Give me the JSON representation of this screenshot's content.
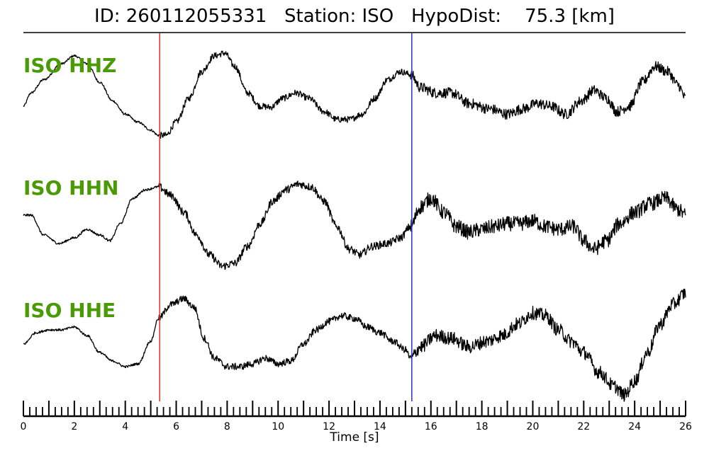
{
  "title": "ID: 260112055331   Station: ISO   HypoDist:    75.3 [km]",
  "chart_data": {
    "type": "line",
    "title": "ID: 260112055331   Station: ISO   HypoDist:    75.3 [km]",
    "xlabel": "Time [s]",
    "ylabel": "",
    "xlim": [
      0,
      26
    ],
    "x_ticks": [
      0,
      2,
      4,
      6,
      8,
      10,
      12,
      14,
      16,
      18,
      20,
      22,
      24,
      26
    ],
    "minor_tick_step": 0.25,
    "grid": false,
    "label_color": "#4a9a06",
    "trace_color": "#000000",
    "markers": [
      {
        "name": "P pick",
        "t": 5.35,
        "color": "#e0312c"
      },
      {
        "name": "S pick",
        "t": 15.25,
        "color": "#2a2fc8"
      }
    ],
    "series": [
      {
        "name": "ISO HHZ",
        "noise_phases": [
          [
            0,
            5.3,
            0.02
          ],
          [
            5.3,
            15.2,
            0.06
          ],
          [
            15.2,
            26,
            0.1
          ]
        ],
        "points": [
          [
            0,
            -0.2
          ],
          [
            0.3,
            0.05
          ],
          [
            0.8,
            0.3
          ],
          [
            1.5,
            0.6
          ],
          [
            2.0,
            0.75
          ],
          [
            2.5,
            0.6
          ],
          [
            3.0,
            0.25
          ],
          [
            3.5,
            -0.1
          ],
          [
            4.0,
            -0.35
          ],
          [
            4.5,
            -0.5
          ],
          [
            5.0,
            -0.65
          ],
          [
            5.3,
            -0.75
          ],
          [
            5.6,
            -0.75
          ],
          [
            6.0,
            -0.5
          ],
          [
            6.5,
            -0.05
          ],
          [
            7.0,
            0.45
          ],
          [
            7.5,
            0.75
          ],
          [
            7.9,
            0.8
          ],
          [
            8.3,
            0.55
          ],
          [
            8.8,
            0.05
          ],
          [
            9.3,
            -0.2
          ],
          [
            9.7,
            -0.22
          ],
          [
            10.2,
            -0.05
          ],
          [
            10.7,
            0.05
          ],
          [
            11.2,
            -0.05
          ],
          [
            11.8,
            -0.3
          ],
          [
            12.3,
            -0.45
          ],
          [
            12.8,
            -0.45
          ],
          [
            13.3,
            -0.35
          ],
          [
            13.8,
            -0.05
          ],
          [
            14.3,
            0.3
          ],
          [
            14.8,
            0.45
          ],
          [
            15.2,
            0.4
          ],
          [
            15.6,
            0.15
          ],
          [
            16.2,
            0.05
          ],
          [
            16.8,
            0.05
          ],
          [
            17.5,
            -0.15
          ],
          [
            18.3,
            -0.25
          ],
          [
            19.0,
            -0.35
          ],
          [
            19.6,
            -0.25
          ],
          [
            20.2,
            -0.15
          ],
          [
            20.7,
            -0.2
          ],
          [
            21.3,
            -0.35
          ],
          [
            21.9,
            -0.1
          ],
          [
            22.4,
            0.1
          ],
          [
            22.9,
            -0.05
          ],
          [
            23.3,
            -0.3
          ],
          [
            23.8,
            -0.2
          ],
          [
            24.3,
            0.25
          ],
          [
            24.8,
            0.55
          ],
          [
            25.3,
            0.45
          ],
          [
            25.7,
            0.2
          ],
          [
            26.0,
            -0.05
          ]
        ]
      },
      {
        "name": "ISO HHN",
        "noise_phases": [
          [
            0,
            5.3,
            0.02
          ],
          [
            5.3,
            15.2,
            0.07
          ],
          [
            15.2,
            26,
            0.13
          ]
        ],
        "points": [
          [
            0,
            0.1
          ],
          [
            0.3,
            0.1
          ],
          [
            0.8,
            -0.25
          ],
          [
            1.4,
            -0.4
          ],
          [
            2.0,
            -0.3
          ],
          [
            2.5,
            -0.15
          ],
          [
            3.0,
            -0.25
          ],
          [
            3.4,
            -0.35
          ],
          [
            3.8,
            -0.05
          ],
          [
            4.3,
            0.4
          ],
          [
            4.8,
            0.55
          ],
          [
            5.3,
            0.6
          ],
          [
            5.8,
            0.45
          ],
          [
            6.3,
            0.15
          ],
          [
            6.8,
            -0.25
          ],
          [
            7.3,
            -0.6
          ],
          [
            7.8,
            -0.8
          ],
          [
            8.3,
            -0.75
          ],
          [
            8.8,
            -0.45
          ],
          [
            9.3,
            -0.05
          ],
          [
            9.8,
            0.35
          ],
          [
            10.3,
            0.55
          ],
          [
            10.8,
            0.65
          ],
          [
            11.3,
            0.6
          ],
          [
            11.8,
            0.35
          ],
          [
            12.3,
            -0.1
          ],
          [
            12.8,
            -0.5
          ],
          [
            13.2,
            -0.6
          ],
          [
            13.7,
            -0.45
          ],
          [
            14.3,
            -0.4
          ],
          [
            14.8,
            -0.3
          ],
          [
            15.2,
            -0.1
          ],
          [
            15.6,
            0.25
          ],
          [
            16.0,
            0.4
          ],
          [
            16.5,
            0.15
          ],
          [
            17.0,
            -0.1
          ],
          [
            17.5,
            -0.2
          ],
          [
            18.0,
            -0.15
          ],
          [
            18.5,
            -0.1
          ],
          [
            19.0,
            -0.05
          ],
          [
            19.5,
            -0.05
          ],
          [
            20.0,
            0.0
          ],
          [
            20.5,
            -0.1
          ],
          [
            21.0,
            -0.15
          ],
          [
            21.6,
            -0.1
          ],
          [
            22.0,
            -0.35
          ],
          [
            22.4,
            -0.5
          ],
          [
            22.9,
            -0.35
          ],
          [
            23.4,
            -0.05
          ],
          [
            24.0,
            0.15
          ],
          [
            24.6,
            0.3
          ],
          [
            25.2,
            0.4
          ],
          [
            25.7,
            0.2
          ],
          [
            26.0,
            0.1
          ]
        ]
      },
      {
        "name": "ISO HHE",
        "noise_phases": [
          [
            0,
            5.3,
            0.02
          ],
          [
            5.3,
            15.2,
            0.06
          ],
          [
            15.2,
            26,
            0.12
          ]
        ],
        "points": [
          [
            0,
            -0.1
          ],
          [
            0.5,
            0.1
          ],
          [
            1.0,
            0.15
          ],
          [
            1.5,
            0.15
          ],
          [
            2.0,
            0.2
          ],
          [
            2.5,
            0.05
          ],
          [
            3.0,
            -0.25
          ],
          [
            3.5,
            -0.4
          ],
          [
            4.0,
            -0.5
          ],
          [
            4.5,
            -0.45
          ],
          [
            5.0,
            -0.05
          ],
          [
            5.3,
            0.35
          ],
          [
            5.8,
            0.6
          ],
          [
            6.3,
            0.7
          ],
          [
            6.7,
            0.55
          ],
          [
            7.1,
            0.0
          ],
          [
            7.5,
            -0.35
          ],
          [
            8.0,
            -0.5
          ],
          [
            8.5,
            -0.5
          ],
          [
            9.0,
            -0.45
          ],
          [
            9.5,
            -0.35
          ],
          [
            10.0,
            -0.45
          ],
          [
            10.5,
            -0.4
          ],
          [
            11.0,
            -0.1
          ],
          [
            11.5,
            0.15
          ],
          [
            12.0,
            0.3
          ],
          [
            12.5,
            0.4
          ],
          [
            13.0,
            0.35
          ],
          [
            13.5,
            0.2
          ],
          [
            14.0,
            0.1
          ],
          [
            14.5,
            -0.05
          ],
          [
            15.0,
            -0.2
          ],
          [
            15.2,
            -0.35
          ],
          [
            15.6,
            -0.15
          ],
          [
            16.2,
            0.05
          ],
          [
            16.8,
            0.0
          ],
          [
            17.5,
            -0.15
          ],
          [
            18.2,
            -0.05
          ],
          [
            18.8,
            0.05
          ],
          [
            19.4,
            0.25
          ],
          [
            20.0,
            0.45
          ],
          [
            20.5,
            0.4
          ],
          [
            21.0,
            0.15
          ],
          [
            21.5,
            -0.05
          ],
          [
            22.0,
            -0.25
          ],
          [
            22.6,
            -0.6
          ],
          [
            23.2,
            -0.85
          ],
          [
            23.6,
            -1.0
          ],
          [
            24.0,
            -0.75
          ],
          [
            24.5,
            -0.25
          ],
          [
            25.0,
            0.25
          ],
          [
            25.5,
            0.6
          ],
          [
            26.0,
            0.8
          ]
        ]
      }
    ]
  }
}
